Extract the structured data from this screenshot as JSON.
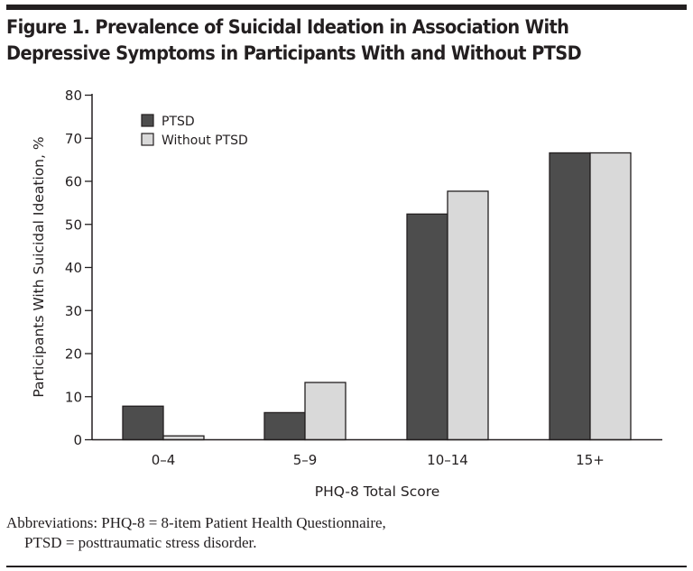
{
  "figure": {
    "title_line1": "Figure 1. Prevalence of Suicidal Ideation in Association With",
    "title_line2": "Depressive Symptoms in Participants With and Without PTSD",
    "footnote_line1": "Abbreviations: PHQ-8 = 8-item Patient Health Questionnaire,",
    "footnote_line2": "PTSD = posttraumatic stress disorder."
  },
  "chart_data": {
    "type": "bar",
    "title": "Prevalence of Suicidal Ideation in Association With Depressive Symptoms in Participants With and Without PTSD",
    "xlabel": "PHQ-8 Total Score",
    "ylabel": "Participants With Suicidal Ideation, %",
    "categories": [
      "0–4",
      "5–9",
      "10–14",
      "15+"
    ],
    "series": [
      {
        "name": "PTSD",
        "color": "#4d4d4d",
        "values": [
          7.8,
          6.3,
          52.4,
          66.6
        ]
      },
      {
        "name": "Without PTSD",
        "color": "#d9d9d9",
        "values": [
          0.9,
          13.3,
          57.7,
          66.6
        ]
      }
    ],
    "ylim": [
      0,
      80
    ],
    "yticks": [
      0,
      10,
      20,
      30,
      40,
      50,
      60,
      70,
      80
    ],
    "grid": false,
    "legend_position": "top-left"
  }
}
